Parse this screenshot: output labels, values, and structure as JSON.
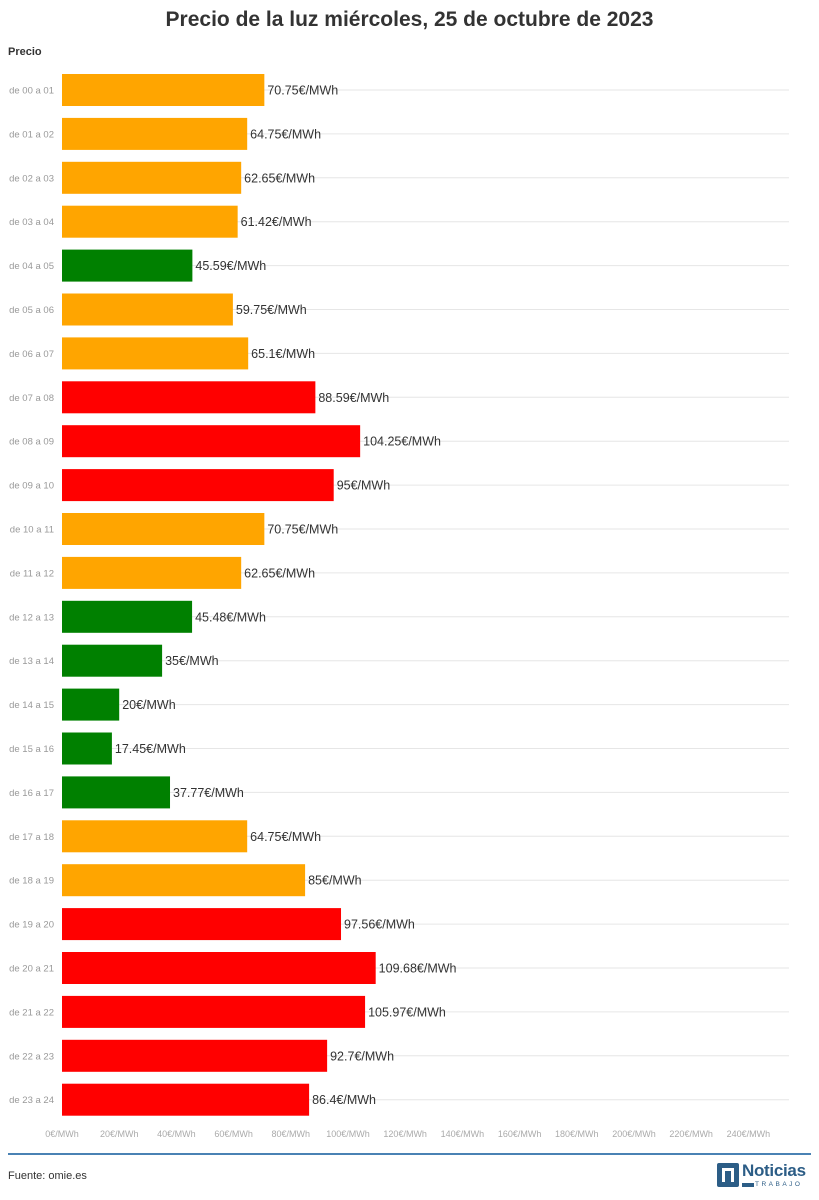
{
  "title": "Precio de la luz miércoles, 25 de octubre de 2023",
  "source": "Fuente: omie.es",
  "logo": {
    "word": "Noticias",
    "sub": "TRABAJO"
  },
  "colors": {
    "green": "#008000",
    "orange": "#FFA500",
    "red": "#FF0000",
    "grid": "#e6e6e6",
    "rule": "#4a82b4",
    "brand": "#2c5d86"
  },
  "chart_data": {
    "type": "bar",
    "orientation": "horizontal",
    "title": "Precio de la luz miércoles, 25 de octubre de 2023",
    "ylabel": "Precio",
    "xlabel": "",
    "xlim": [
      0,
      250
    ],
    "x_ticks": [
      0,
      20,
      40,
      60,
      80,
      100,
      120,
      140,
      160,
      180,
      200,
      220,
      240
    ],
    "x_tick_labels": [
      "0€/MWh",
      "20€/MWh",
      "40€/MWh",
      "60€/MWh",
      "80€/MWh",
      "100€/MWh",
      "120€/MWh",
      "140€/MWh",
      "160€/MWh",
      "180€/MWh",
      "200€/MWh",
      "220€/MWh",
      "240€/MWh"
    ],
    "grid": true,
    "categories": [
      "de 00 a 01",
      "de 01 a 02",
      "de 02 a 03",
      "de 03 a 04",
      "de 04 a 05",
      "de 05 a 06",
      "de 06 a 07",
      "de 07 a 08",
      "de 08 a 09",
      "de 09 a 10",
      "de 10 a 11",
      "de 11 a 12",
      "de 12 a 13",
      "de 13 a 14",
      "de 14 a 15",
      "de 15 a 16",
      "de 16 a 17",
      "de 17 a 18",
      "de 18 a 19",
      "de 19 a 20",
      "de 20 a 21",
      "de 21 a 22",
      "de 22 a 23",
      "de 23 a 24"
    ],
    "values": [
      70.75,
      64.75,
      62.65,
      61.42,
      45.59,
      59.75,
      65.1,
      88.59,
      104.25,
      95,
      70.75,
      62.65,
      45.48,
      35,
      20,
      17.45,
      37.77,
      64.75,
      85,
      97.56,
      109.68,
      105.97,
      92.7,
      86.4
    ],
    "value_labels": [
      "70.75€/MWh",
      "64.75€/MWh",
      "62.65€/MWh",
      "61.42€/MWh",
      "45.59€/MWh",
      "59.75€/MWh",
      "65.1€/MWh",
      "88.59€/MWh",
      "104.25€/MWh",
      "95€/MWh",
      "70.75€/MWh",
      "62.65€/MWh",
      "45.48€/MWh",
      "35€/MWh",
      "20€/MWh",
      "17.45€/MWh",
      "37.77€/MWh",
      "64.75€/MWh",
      "85€/MWh",
      "97.56€/MWh",
      "109.68€/MWh",
      "105.97€/MWh",
      "92.7€/MWh",
      "86.4€/MWh"
    ],
    "bar_colors": [
      "orange",
      "orange",
      "orange",
      "orange",
      "green",
      "orange",
      "orange",
      "red",
      "red",
      "red",
      "orange",
      "orange",
      "green",
      "green",
      "green",
      "green",
      "green",
      "orange",
      "orange",
      "red",
      "red",
      "red",
      "red",
      "red"
    ]
  }
}
